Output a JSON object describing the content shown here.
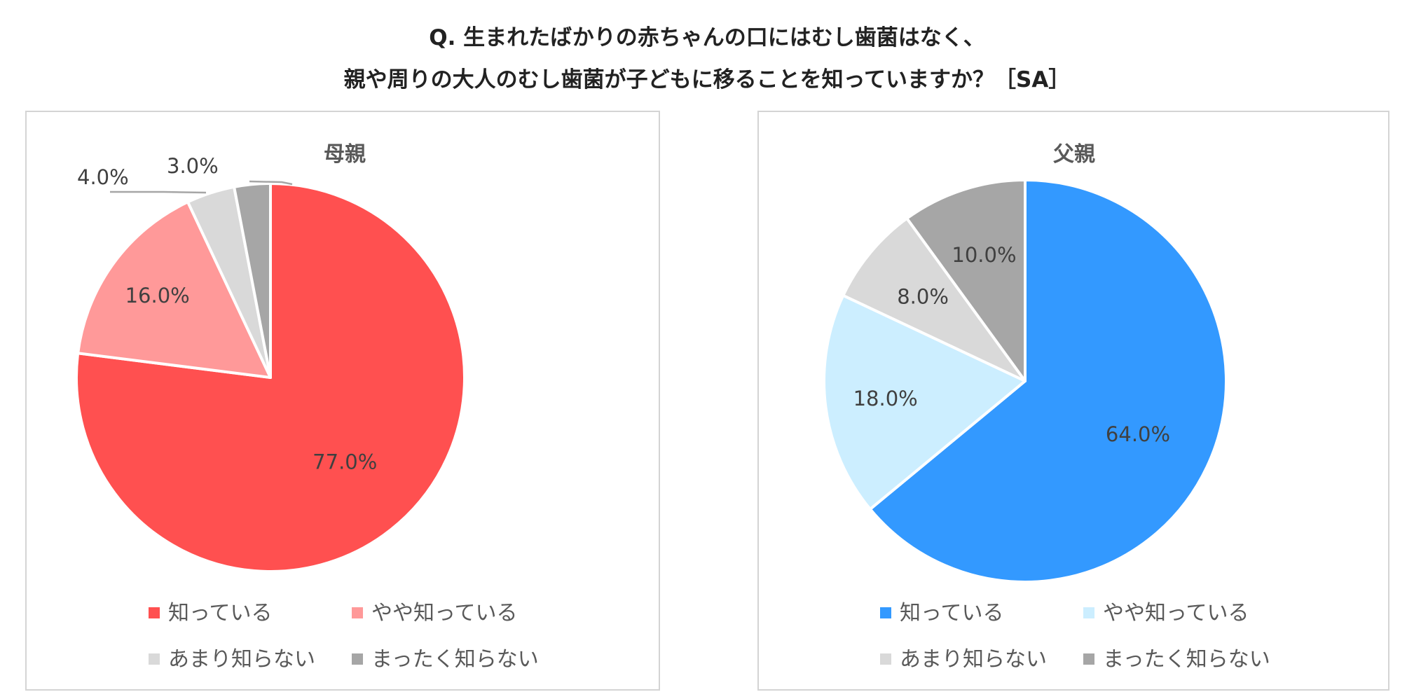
{
  "title": {
    "line1": "Q. 生まれたばかりの赤ちゃんの口にはむし歯菌はなく、",
    "line2": "親や周りの大人のむし歯菌が子どもに移ることを知っていますか？［SA］"
  },
  "legend_labels": [
    "知っている",
    "やや知っている",
    "あまり知らない",
    "まったく知らない"
  ],
  "chart_data": [
    {
      "type": "pie",
      "title": "母親",
      "categories": [
        "知っている",
        "やや知っている",
        "あまり知らない",
        "まったく知らない"
      ],
      "values": [
        77.0,
        16.0,
        4.0,
        3.0
      ],
      "value_labels": [
        "77.0%",
        "16.0%",
        "4.0%",
        "3.0%"
      ],
      "colors": [
        "#ff5050",
        "#ff9999",
        "#d9d9d9",
        "#a6a6a6"
      ],
      "legend": "bottom",
      "start": "12 o'clock, clockwise"
    },
    {
      "type": "pie",
      "title": "父親",
      "categories": [
        "知っている",
        "やや知っている",
        "あまり知らない",
        "まったく知らない"
      ],
      "values": [
        64.0,
        18.0,
        8.0,
        10.0
      ],
      "value_labels": [
        "64.0%",
        "18.0%",
        "8.0%",
        "10.0%"
      ],
      "colors": [
        "#3399ff",
        "#cceeff",
        "#d9d9d9",
        "#a6a6a6"
      ],
      "legend": "bottom",
      "start": "12 o'clock, clockwise"
    }
  ]
}
